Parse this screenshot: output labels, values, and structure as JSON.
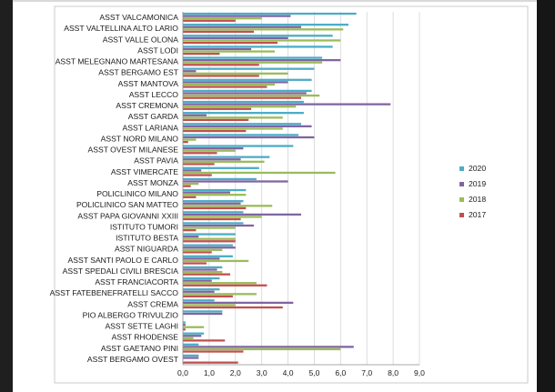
{
  "chart_data": {
    "type": "bar",
    "orientation": "horizontal",
    "categories": [
      "ASST VALCAMONICA",
      "ASST VALTELLINA ALTO LARIO",
      "ASST VALLE OLONA",
      "ASST LODI",
      "ASST MELEGNANO MARTESANA",
      "ASST BERGAMO EST",
      "ASST MANTOVA",
      "ASST LECCO",
      "ASST CREMONA",
      "ASST GARDA",
      "ASST LARIANA",
      "ASST NORD MILANO",
      "ASST OVEST MILANESE",
      "ASST PAVIA",
      "ASST VIMERCATE",
      "ASST MONZA",
      "POLICLINICO MILANO",
      "POLICLINICO SAN MATTEO",
      "ASST PAPA GIOVANNI XXIII",
      "ISTITUTO TUMORI",
      "ISTITUTO BESTA",
      "ASST NIGUARDA",
      "ASST SANTI PAOLO E CARLO",
      "ASST SPEDALI CIVILI BRESCIA",
      "ASST FRANCIACORTA",
      "ASST FATEBENEFRATELLI SACCO",
      "ASST CREMA",
      "PIO ALBERGO TRIVULZIO",
      "ASST SETTE LAGHI",
      "ASST RHODENSE",
      "ASST GAETANO PINI",
      "ASST BERGAMO OVEST"
    ],
    "series": [
      {
        "name": "2020",
        "color": "#4bacc6",
        "values": [
          6.6,
          6.3,
          5.7,
          5.7,
          5.3,
          5.0,
          4.9,
          4.9,
          4.6,
          4.6,
          4.5,
          4.4,
          4.2,
          3.3,
          2.9,
          2.8,
          2.4,
          2.3,
          2.3,
          2.3,
          2.0,
          1.9,
          1.9,
          1.5,
          1.4,
          1.4,
          1.2,
          1.5,
          0.1,
          0.8,
          0.6,
          0.6
        ]
      },
      {
        "name": "2019",
        "color": "#8064a2",
        "values": [
          4.1,
          4.5,
          4.0,
          2.6,
          6.0,
          0.5,
          4.0,
          4.7,
          7.9,
          0.9,
          4.9,
          5.0,
          2.3,
          2.2,
          0.7,
          4.0,
          1.8,
          2.2,
          4.5,
          2.7,
          0.6,
          2.0,
          1.4,
          1.3,
          1.1,
          1.2,
          4.2,
          1.5,
          0.1,
          0.7,
          6.5,
          0.6
        ]
      },
      {
        "name": "2018",
        "color": "#9bbb59",
        "values": [
          3.0,
          6.1,
          6.0,
          3.5,
          5.3,
          4.0,
          3.5,
          5.2,
          4.3,
          3.8,
          3.8,
          0.5,
          2.0,
          3.1,
          5.8,
          0.6,
          2.4,
          3.4,
          3.0,
          2.0,
          2.0,
          1.5,
          2.5,
          1.5,
          2.8,
          2.8,
          2.0,
          0.0,
          0.8,
          0.4,
          6.0,
          0.0
        ]
      },
      {
        "name": "2017",
        "color": "#c0504d",
        "values": [
          2.0,
          2.7,
          3.6,
          1.4,
          2.9,
          2.9,
          3.2,
          4.5,
          2.6,
          2.5,
          2.4,
          0.2,
          1.3,
          1.2,
          1.1,
          0.3,
          0.5,
          2.4,
          2.2,
          0.5,
          2.0,
          1.1,
          0.9,
          1.8,
          3.2,
          1.9,
          3.8,
          0.0,
          0.1,
          1.6,
          2.3,
          2.1
        ]
      }
    ],
    "x_ticks": [
      "0,0",
      "1,0",
      "2,0",
      "3,0",
      "4,0",
      "5,0",
      "6,0",
      "7,0",
      "8,0",
      "9,0"
    ],
    "xlim": [
      0,
      9
    ],
    "title": "",
    "xlabel": "",
    "ylabel": "",
    "grid": "vertical",
    "legend": {
      "placement": "right",
      "order": [
        "2020",
        "2019",
        "2018",
        "2017"
      ]
    }
  }
}
